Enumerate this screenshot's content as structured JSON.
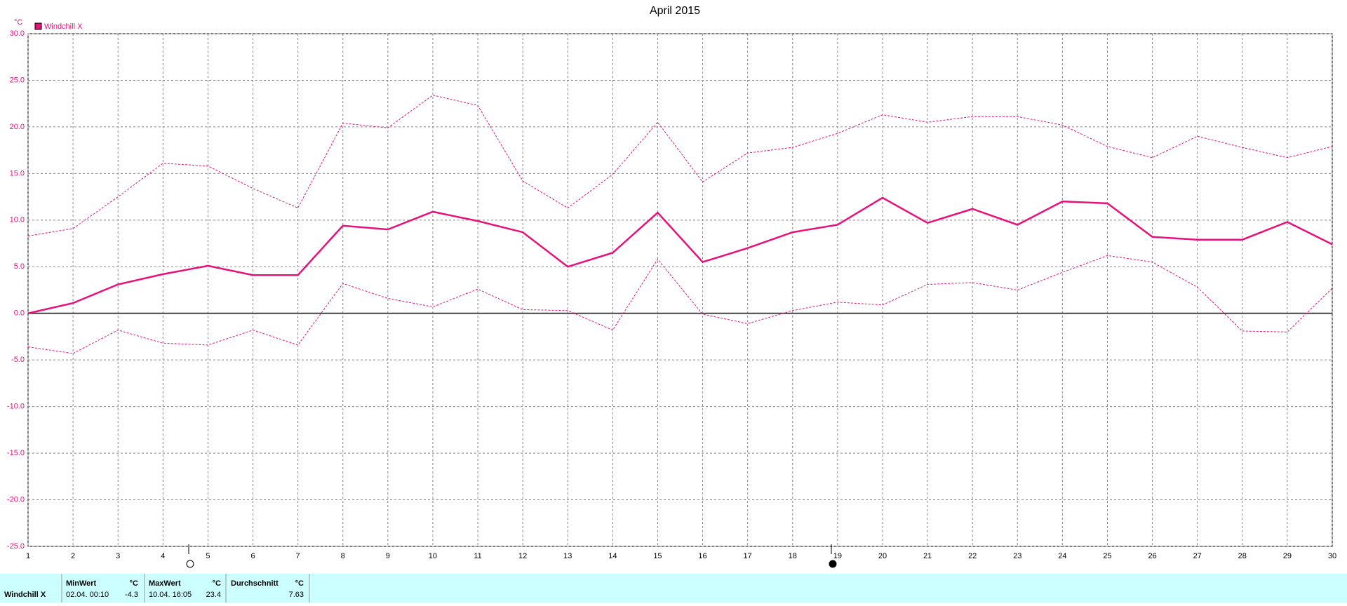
{
  "chart_data": {
    "type": "line",
    "title": "April 2015",
    "ylabel": "°C",
    "x": [
      1,
      2,
      3,
      4,
      5,
      6,
      7,
      8,
      9,
      10,
      11,
      12,
      13,
      14,
      15,
      16,
      17,
      18,
      19,
      20,
      21,
      22,
      23,
      24,
      25,
      26,
      27,
      28,
      29,
      30
    ],
    "series": [
      {
        "name": "Windchill X",
        "color": "#e8107a",
        "line_style": "solid",
        "values": [
          0,
          1.1,
          3.1,
          4.2,
          5.1,
          4.1,
          4.1,
          9.4,
          9.0,
          10.9,
          9.9,
          8.7,
          5.0,
          6.5,
          10.8,
          5.5,
          7.0,
          8.7,
          9.5,
          12.4,
          9.7,
          11.2,
          9.5,
          12.0,
          11.8,
          8.2,
          7.9,
          7.9,
          9.8,
          7.4
        ]
      },
      {
        "color": "#e8107a",
        "line_style": "dashed",
        "values": [
          8.3,
          9.1,
          12.5,
          16.1,
          15.8,
          13.4,
          11.3,
          20.4,
          19.9,
          23.4,
          22.3,
          14.2,
          11.3,
          14.9,
          20.5,
          14.1,
          17.2,
          17.8,
          19.3,
          21.3,
          20.5,
          21.1,
          21.1,
          20.2,
          17.9,
          16.7,
          19.0,
          17.8,
          16.7,
          17.9
        ]
      },
      {
        "color": "#e8107a",
        "line_style": "dashed",
        "values": [
          -3.6,
          -4.3,
          -1.8,
          -3.2,
          -3.4,
          -1.8,
          -3.4,
          3.2,
          1.6,
          0.7,
          2.6,
          0.4,
          0.3,
          -1.8,
          5.8,
          -0.1,
          -1.1,
          0.3,
          1.2,
          0.9,
          3.1,
          3.3,
          2.5,
          4.4,
          6.2,
          5.5,
          2.8,
          -1.9,
          -2.0,
          2.7
        ]
      }
    ],
    "xlim": [
      1,
      30
    ],
    "xticks": [
      1,
      2,
      3,
      4,
      5,
      6,
      7,
      8,
      9,
      10,
      11,
      12,
      13,
      14,
      15,
      16,
      17,
      18,
      19,
      20,
      21,
      22,
      23,
      24,
      25,
      26,
      27,
      28,
      29,
      30
    ],
    "ylim": [
      -25,
      30
    ],
    "yticks": [
      {
        "value": -25,
        "label": "-25.0"
      },
      {
        "value": -20,
        "label": "-20.0"
      },
      {
        "value": -15,
        "label": "-15.0"
      },
      {
        "value": -10,
        "label": "-10.0"
      },
      {
        "value": -5,
        "label": "-5.0"
      },
      {
        "value": 0,
        "label": "0.0"
      },
      {
        "value": 5,
        "label": "5.0"
      },
      {
        "value": 10,
        "label": "10.0"
      },
      {
        "value": 15,
        "label": "15.0"
      },
      {
        "value": 20,
        "label": "20.0"
      },
      {
        "value": 25,
        "label": "25.0"
      },
      {
        "value": 30,
        "label": "30.0"
      }
    ],
    "grid": true
  },
  "stats": {
    "name": "Windchill X",
    "min": {
      "header": "MinWert",
      "unit": "°C",
      "time": "02.04.  00:10",
      "value": "-4.3"
    },
    "max": {
      "header": "MaxWert",
      "unit": "°C",
      "time": "10.04.  16:05",
      "value": "23.4"
    },
    "avg": {
      "header": "Durchschnitt",
      "unit": "°C",
      "value": "7.63"
    }
  }
}
